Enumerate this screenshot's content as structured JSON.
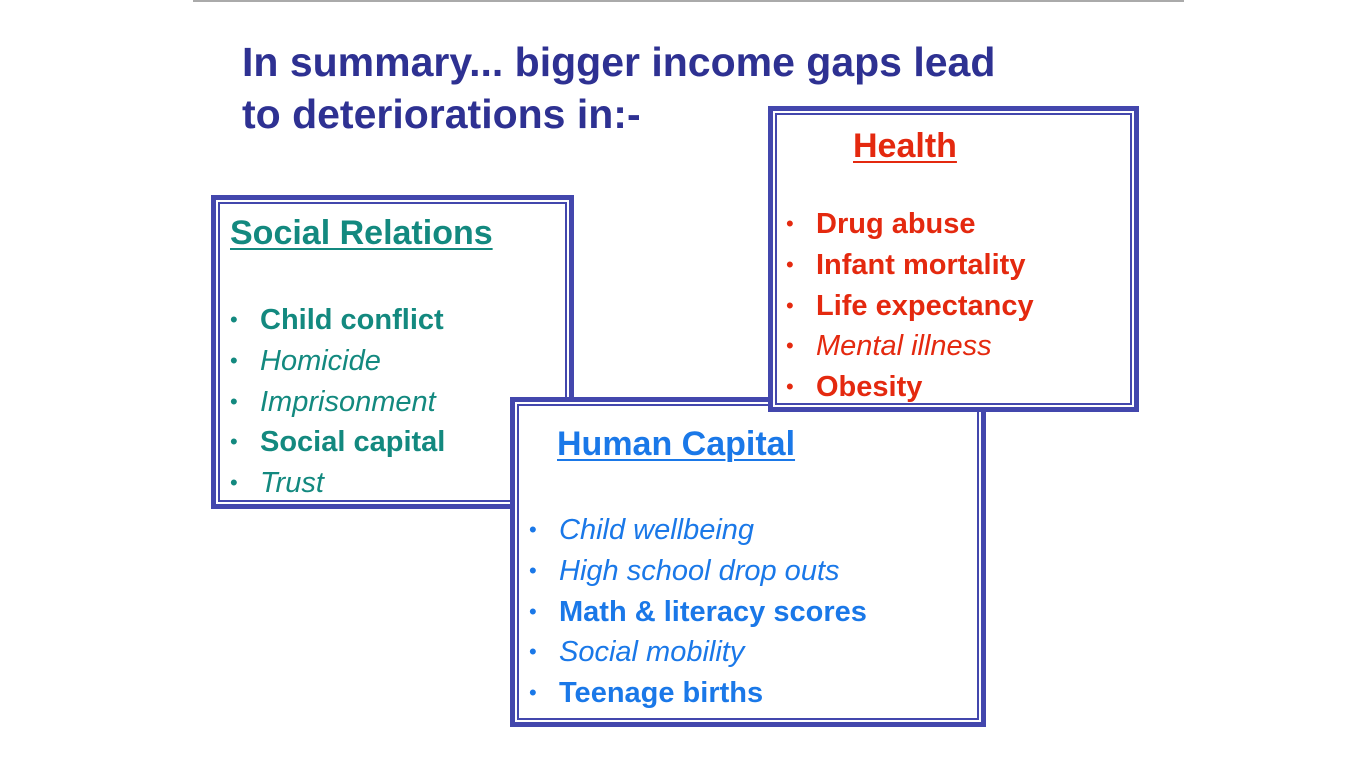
{
  "title": {
    "line1": "In summary... bigger income gaps lead",
    "line2": "to deteriorations in:-"
  },
  "colors": {
    "title": "#2e3192",
    "border": "#4347ad",
    "social": "#13897f",
    "health": "#e4290f",
    "human": "#1a78e8"
  },
  "social": {
    "heading": "Social Relations",
    "items": [
      {
        "label": "Child conflict",
        "style": "bold"
      },
      {
        "label": "Homicide",
        "style": "italic"
      },
      {
        "label": "Imprisonment",
        "style": "italic"
      },
      {
        "label": "Social capital",
        "style": "bold"
      },
      {
        "label": "Trust",
        "style": "italic"
      }
    ]
  },
  "health": {
    "heading": "Health",
    "items": [
      {
        "label": "Drug abuse",
        "style": "bold"
      },
      {
        "label": "Infant mortality",
        "style": "bold"
      },
      {
        "label": "Life expectancy",
        "style": "bold"
      },
      {
        "label": "Mental illness",
        "style": "italic"
      },
      {
        "label": "Obesity",
        "style": "bold"
      }
    ]
  },
  "human": {
    "heading": "Human Capital",
    "items": [
      {
        "label": "Child wellbeing",
        "style": "italic"
      },
      {
        "label": "High school drop outs",
        "style": "italic"
      },
      {
        "label": "Math & literacy scores",
        "style": "bold"
      },
      {
        "label": "Social mobility",
        "style": "italic"
      },
      {
        "label": "Teenage births",
        "style": "bold"
      }
    ]
  },
  "bullet": "•"
}
